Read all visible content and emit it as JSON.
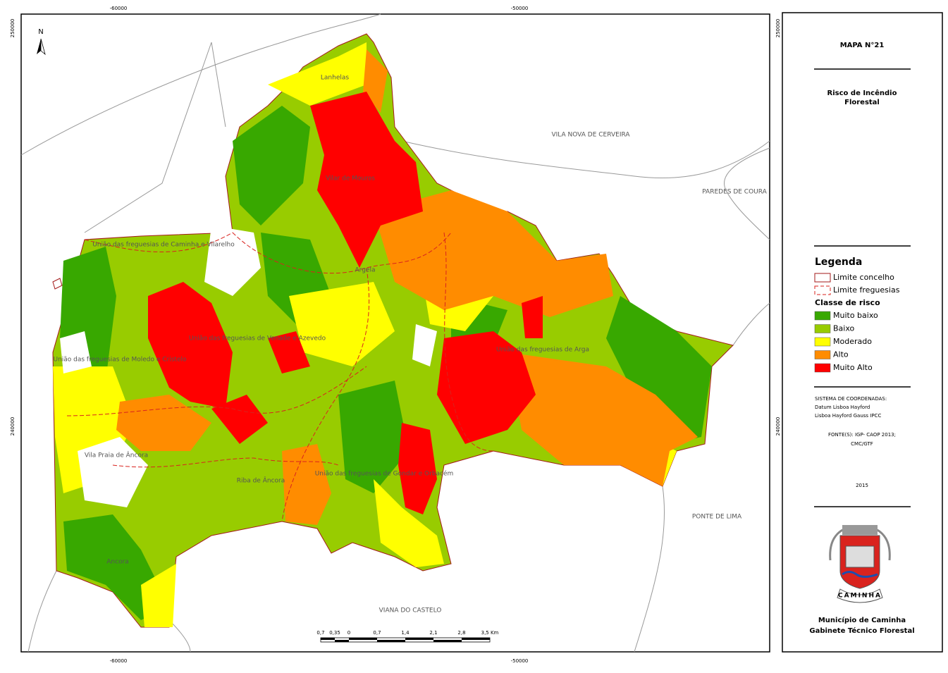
{
  "map": {
    "coordinates": {
      "top": [
        "-60000",
        "-50000"
      ],
      "bottom": [
        "-60000",
        "-50000"
      ],
      "left": [
        "250000",
        "240000"
      ],
      "right": [
        "250000",
        "240000"
      ]
    },
    "north": "N",
    "places": [
      "Lanhelas",
      "VILA NOVA DE CERVEIRA",
      "PAREDES DE COURA",
      "Argela",
      "Ancora",
      "VIANA DO CASTELO",
      "PONTE DE LIMA",
      "União das freguesias de Caminha e Vilarelho",
      "União das freguesias de Venade e Azevedo",
      "União das freguesias de Moledo e Cristelo",
      "União das freguesias de Arga",
      "Vila Praia de Âncora",
      "Riba de Âncora",
      "União das freguesias de Gondar e Orbacém",
      "Vilar de Mouros"
    ],
    "scale": {
      "labels": [
        "0,7",
        "0,35",
        "0",
        "0,7",
        "1,4",
        "2,1",
        "2,8",
        "3,5 Km"
      ]
    }
  },
  "panel": {
    "map_number": "MAPA N°21",
    "title": [
      "Risco de Incêndio",
      "Florestal"
    ],
    "legend_title": "Legenda",
    "limits": [
      {
        "name": "Limite concelho",
        "color": "#a31a1a"
      },
      {
        "name": "Limite freguesias",
        "color": "#d9231e"
      }
    ],
    "class_title": "Classe de risco",
    "classes": [
      {
        "name": "Muito baixo",
        "color": "#38a800"
      },
      {
        "name": "Baixo",
        "color": "#98cc00"
      },
      {
        "name": "Moderado",
        "color": "#ffff00"
      },
      {
        "name": "Alto",
        "color": "#ff8c00"
      },
      {
        "name": "Muito Alto",
        "color": "#ff0000"
      }
    ],
    "coords": [
      "SISTEMA DE COORDENADAS:",
      "Datum Lisboa Hayford",
      "Lisboa Hayford Gauss IPCC"
    ],
    "sources": [
      "FONTE(S): IGP- CAOP 2013;",
      "CMC/GTF"
    ],
    "year": "2015",
    "logo_text": "CAMINHA",
    "footer": [
      "Município de Caminha",
      "Gabinete Técnico Florestal"
    ]
  }
}
